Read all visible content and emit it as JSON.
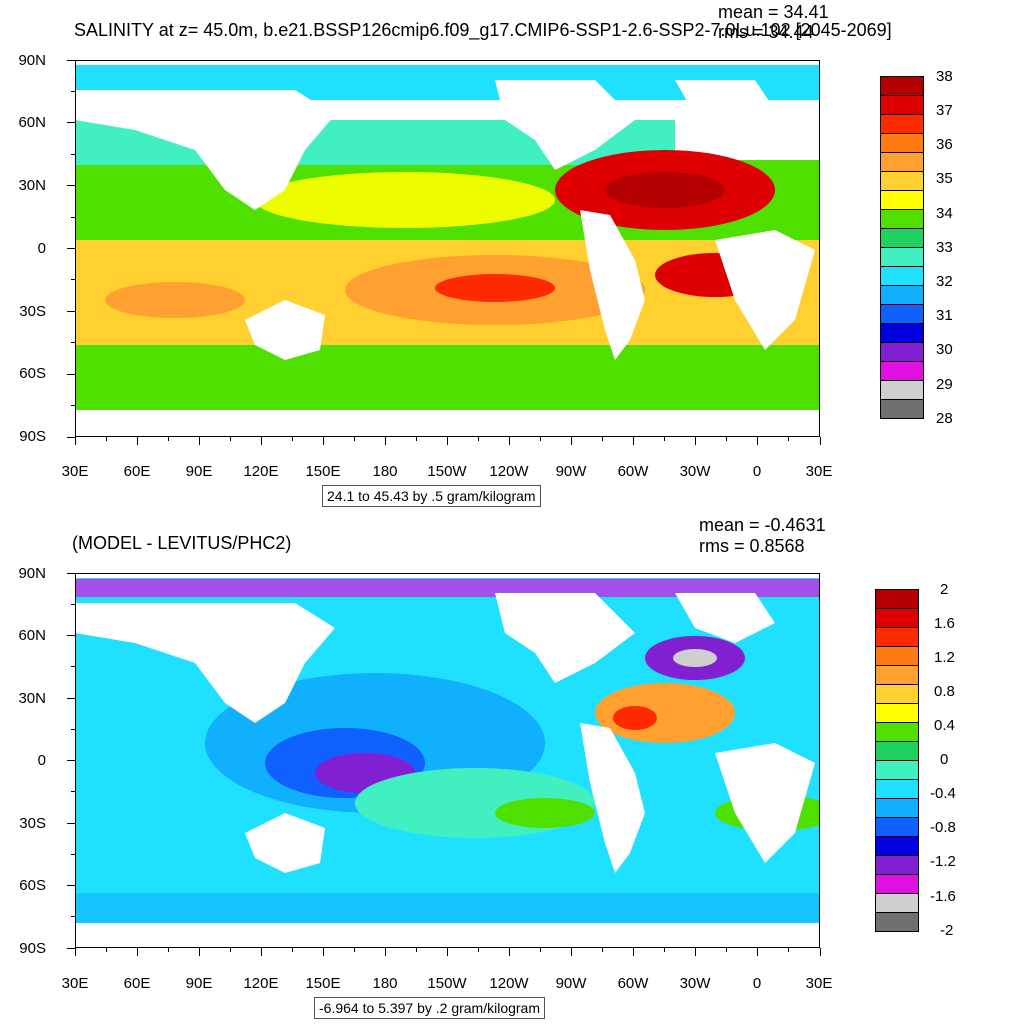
{
  "panels": [
    {
      "title": "SALINITY at z=  45.0m, b.e21.BSSP126cmip6.f09_g17.CMIP6-SSP1-2.6-SSP2-7.0Lu.102 [2045-2069]",
      "mean_text": "mean = 34.41",
      "rms_text": "rms = 34.44",
      "subtitle": "24.1 to 45.43 by .5 gram/kilogram",
      "lat_labels": [
        "90N",
        "60N",
        "30N",
        "0",
        "30S",
        "60S",
        "90S"
      ],
      "lon_labels": [
        "30E",
        "60E",
        "90E",
        "120E",
        "150E",
        "180",
        "150W",
        "120W",
        "90W",
        "60W",
        "30W",
        "0",
        "30E"
      ],
      "legend": {
        "labels": [
          "38",
          "37",
          "36",
          "35",
          "34",
          "33",
          "32",
          "31",
          "30",
          "29",
          "28"
        ],
        "colors": [
          "#b40000",
          "#de0000",
          "#ff2a00",
          "#ff7a10",
          "#ffa030",
          "#ffd030",
          "#ffff00",
          "#50e000",
          "#20d060",
          "#40f0c0",
          "#20e0ff",
          "#10b0ff",
          "#1060ff",
          "#0000e0",
          "#8020d0",
          "#e010e0",
          "#cfcfcf",
          "#707070"
        ]
      }
    },
    {
      "title": "(MODEL - LEVITUS/PHC2)",
      "mean_text": "mean = -0.4631",
      "rms_text": "rms = 0.8568",
      "subtitle": "-6.964 to 5.397 by .2 gram/kilogram",
      "lat_labels": [
        "90N",
        "60N",
        "30N",
        "0",
        "30S",
        "60S",
        "90S"
      ],
      "lon_labels": [
        "30E",
        "60E",
        "90E",
        "120E",
        "150E",
        "180",
        "150W",
        "120W",
        "90W",
        "60W",
        "30W",
        "0",
        "30E"
      ],
      "legend": {
        "labels": [
          "2",
          "1.6",
          "1.2",
          "0.8",
          "0.4",
          "0",
          "-0.4",
          "-0.8",
          "-1.2",
          "-1.6",
          "-2"
        ],
        "colors": [
          "#b40000",
          "#de0000",
          "#ff2a00",
          "#ff7a10",
          "#ffa030",
          "#ffd030",
          "#ffff00",
          "#50e000",
          "#20d060",
          "#40f0c0",
          "#20e0ff",
          "#10b0ff",
          "#1060ff",
          "#0000e0",
          "#8020d0",
          "#e010e0",
          "#cfcfcf",
          "#707070"
        ]
      }
    }
  ]
}
